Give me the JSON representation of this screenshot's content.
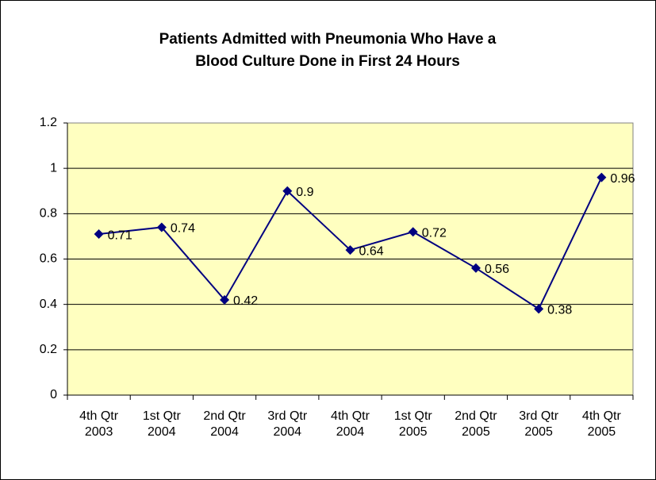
{
  "chart_data": {
    "type": "line",
    "title": "Patients Admitted with Pneumonia Who Have a Blood Culture Done in First 24 Hours",
    "categories": [
      "4th Qtr 2003",
      "1st Qtr 2004",
      "2nd Qtr 2004",
      "3rd Qtr 2004",
      "4th Qtr 2004",
      "1st Qtr 2005",
      "2nd Qtr 2005",
      "3rd Qtr 2005",
      "4th Qtr 2005"
    ],
    "values": [
      0.71,
      0.74,
      0.42,
      0.9,
      0.64,
      0.72,
      0.56,
      0.38,
      0.96
    ],
    "color": "#000080",
    "ylim": [
      0,
      1.2
    ],
    "yticks": [
      0,
      0.2,
      0.4,
      0.6,
      0.8,
      1,
      1.2
    ],
    "grid": true
  }
}
